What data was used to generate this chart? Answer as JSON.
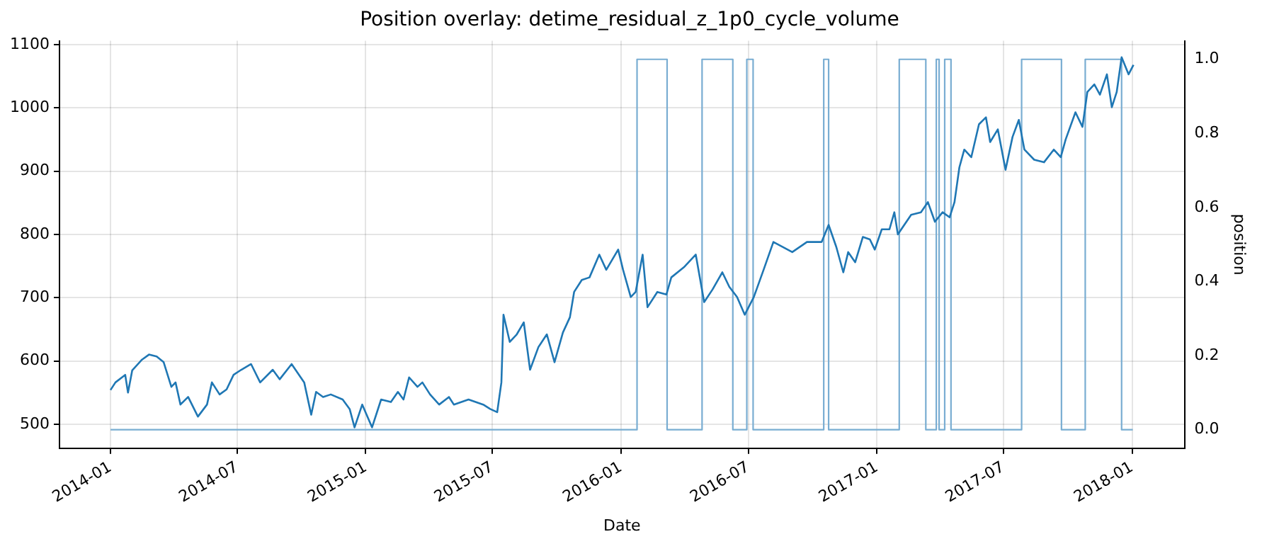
{
  "chart_data": {
    "type": "line",
    "title": "Position overlay: detime_residual_z_1p0_cycle_volume",
    "xlabel": "Date",
    "y2label": "position",
    "xlim": [
      "2013-10-20",
      "2018-03-17"
    ],
    "xticks": [
      {
        "value": "2014-01",
        "label": "2014-01"
      },
      {
        "value": "2014-07",
        "label": "2014-07"
      },
      {
        "value": "2015-01",
        "label": "2015-01"
      },
      {
        "value": "2015-07",
        "label": "2015-07"
      },
      {
        "value": "2016-01",
        "label": "2016-01"
      },
      {
        "value": "2016-07",
        "label": "2016-07"
      },
      {
        "value": "2017-01",
        "label": "2017-01"
      },
      {
        "value": "2017-07",
        "label": "2017-07"
      },
      {
        "value": "2018-01",
        "label": "2018-01"
      }
    ],
    "ylim": [
      462,
      1106
    ],
    "yticks": [
      500,
      600,
      700,
      800,
      900,
      1000,
      1100
    ],
    "y2lim": [
      -0.05,
      1.05
    ],
    "y2ticks": [
      {
        "value": 0,
        "label": "0.0"
      },
      0.2,
      0.4,
      0.6,
      0.8,
      {
        "value": 1,
        "label": "1.0"
      }
    ],
    "grid": true,
    "legend": false,
    "series": [
      {
        "type": "line",
        "color": "#1f77b4",
        "x": [
          "2014-01-01",
          "2014-01-08",
          "2014-01-22",
          "2014-01-26",
          "2014-02-01",
          "2014-02-15",
          "2014-02-25",
          "2014-03-08",
          "2014-03-18",
          "2014-03-29",
          "2014-04-04",
          "2014-04-11",
          "2014-04-22",
          "2014-05-06",
          "2014-05-19",
          "2014-05-26",
          "2014-06-06",
          "2014-06-16",
          "2014-06-26",
          "2014-07-07",
          "2014-07-21",
          "2014-08-03",
          "2014-08-21",
          "2014-08-31",
          "2014-09-17",
          "2014-10-05",
          "2014-10-15",
          "2014-10-22",
          "2014-11-01",
          "2014-11-12",
          "2014-11-29",
          "2014-12-09",
          "2014-12-16",
          "2014-12-27",
          "2015-01-10",
          "2015-01-23",
          "2015-02-06",
          "2015-02-16",
          "2015-02-24",
          "2015-03-04",
          "2015-03-16",
          "2015-03-23",
          "2015-04-03",
          "2015-04-16",
          "2015-04-30",
          "2015-05-07",
          "2015-05-28",
          "2015-06-18",
          "2015-06-28",
          "2015-07-08",
          "2015-07-14",
          "2015-07-17",
          "2015-07-26",
          "2015-08-05",
          "2015-08-15",
          "2015-08-24",
          "2015-09-05",
          "2015-09-17",
          "2015-09-28",
          "2015-10-10",
          "2015-10-20",
          "2015-10-26",
          "2015-11-06",
          "2015-11-17",
          "2015-12-01",
          "2015-12-11",
          "2015-12-28",
          "2016-01-04",
          "2016-01-15",
          "2016-01-22",
          "2016-02-01",
          "2016-02-08",
          "2016-02-22",
          "2016-03-06",
          "2016-03-13",
          "2016-03-31",
          "2016-04-17",
          "2016-04-29",
          "2016-05-11",
          "2016-05-25",
          "2016-06-04",
          "2016-06-15",
          "2016-06-26",
          "2016-07-09",
          "2016-07-23",
          "2016-08-06",
          "2016-09-02",
          "2016-09-23",
          "2016-10-14",
          "2016-10-24",
          "2016-11-04",
          "2016-11-14",
          "2016-11-21",
          "2016-12-01",
          "2016-12-12",
          "2016-12-22",
          "2016-12-29",
          "2017-01-08",
          "2017-01-19",
          "2017-01-26",
          "2017-01-31",
          "2017-02-19",
          "2017-03-05",
          "2017-03-15",
          "2017-03-25",
          "2017-04-05",
          "2017-04-15",
          "2017-04-22",
          "2017-04-29",
          "2017-05-06",
          "2017-05-16",
          "2017-05-27",
          "2017-06-06",
          "2017-06-12",
          "2017-06-23",
          "2017-07-04",
          "2017-07-14",
          "2017-07-23",
          "2017-07-31",
          "2017-08-14",
          "2017-08-28",
          "2017-09-11",
          "2017-09-21",
          "2017-09-28",
          "2017-10-12",
          "2017-10-22",
          "2017-10-29",
          "2017-11-08",
          "2017-11-16",
          "2017-11-26",
          "2017-12-03",
          "2017-12-10",
          "2017-12-17",
          "2017-12-27",
          "2018-01-03"
        ],
        "values": [
          554,
          566,
          578,
          550,
          585,
          602,
          610,
          607,
          598,
          559,
          566,
          531,
          543,
          512,
          531,
          566,
          547,
          555,
          578,
          586,
          595,
          566,
          586,
          571,
          595,
          566,
          515,
          551,
          543,
          547,
          539,
          524,
          495,
          531,
          495,
          539,
          535,
          551,
          539,
          574,
          559,
          566,
          547,
          531,
          543,
          531,
          539,
          531,
          524,
          519,
          566,
          673,
          630,
          642,
          661,
          586,
          622,
          642,
          598,
          645,
          669,
          709,
          728,
          732,
          768,
          744,
          776,
          744,
          701,
          709,
          768,
          685,
          709,
          705,
          732,
          748,
          768,
          693,
          713,
          740,
          717,
          701,
          673,
          701,
          744,
          788,
          772,
          788,
          788,
          815,
          780,
          740,
          772,
          756,
          796,
          792,
          776,
          808,
          808,
          835,
          800,
          831,
          835,
          851,
          820,
          835,
          827,
          851,
          906,
          934,
          922,
          974,
          985,
          946,
          966,
          902,
          954,
          981,
          934,
          918,
          914,
          934,
          922,
          950,
          993,
          970,
          1025,
          1037,
          1021,
          1053,
          1001,
          1025,
          1080,
          1053,
          1068
        ]
      },
      {
        "type": "step",
        "axis": "y2",
        "color": "#79add2",
        "x": [
          "2014-01-01",
          "2016-01-24",
          "2016-03-07",
          "2016-04-26",
          "2016-06-09",
          "2016-06-29",
          "2016-07-08",
          "2016-10-17",
          "2016-10-24",
          "2017-02-02",
          "2017-03-12",
          "2017-03-27",
          "2017-03-31",
          "2017-04-08",
          "2017-04-17",
          "2017-07-27",
          "2017-09-22",
          "2017-10-26",
          "2017-12-17",
          "2018-01-02"
        ],
        "values": [
          0,
          1,
          0,
          1,
          0,
          1,
          0,
          1,
          0,
          1,
          0,
          1,
          0,
          1,
          0,
          1,
          0,
          1,
          0,
          0
        ]
      }
    ]
  }
}
